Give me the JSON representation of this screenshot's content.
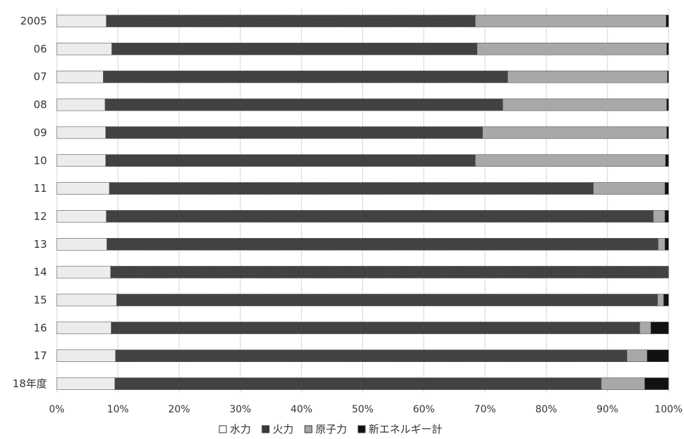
{
  "chart_data": {
    "type": "bar",
    "orientation": "horizontal",
    "stacked": true,
    "normalized": true,
    "categories": [
      "2005",
      "06",
      "07",
      "08",
      "09",
      "10",
      "11",
      "12",
      "13",
      "14",
      "15",
      "16",
      "17",
      "18年度"
    ],
    "series": [
      {
        "name": "水力",
        "color": "#ececec",
        "pattern": "solid",
        "values": [
          8.1,
          9.0,
          7.6,
          7.9,
          8.0,
          8.0,
          8.6,
          8.1,
          8.2,
          8.8,
          9.8,
          8.9,
          9.6,
          9.5
        ]
      },
      {
        "name": "火力",
        "color": "#3a3a3a",
        "pattern": "crosshatch",
        "values": [
          60.3,
          59.7,
          66.1,
          65.0,
          61.6,
          60.4,
          79.1,
          89.4,
          90.1,
          91.2,
          88.4,
          86.4,
          83.6,
          79.5
        ]
      },
      {
        "name": "原子力",
        "color": "#a8a8a8",
        "pattern": "solid",
        "values": [
          31.2,
          31.0,
          26.1,
          26.8,
          30.1,
          31.1,
          11.7,
          1.9,
          1.1,
          0.0,
          1.0,
          1.8,
          3.3,
          7.1
        ]
      },
      {
        "name": "新エネルギー計",
        "color": "#111111",
        "pattern": "solid",
        "values": [
          0.4,
          0.3,
          0.2,
          0.3,
          0.3,
          0.5,
          0.6,
          0.6,
          0.6,
          0.0,
          0.8,
          2.9,
          3.5,
          3.9
        ]
      }
    ],
    "x_ticks": [
      "0%",
      "10%",
      "20%",
      "30%",
      "40%",
      "50%",
      "60%",
      "70%",
      "80%",
      "90%",
      "100%"
    ],
    "xlim": [
      0,
      100
    ],
    "grid": true,
    "legend_position": "bottom",
    "title": "",
    "xlabel": "",
    "ylabel": ""
  }
}
